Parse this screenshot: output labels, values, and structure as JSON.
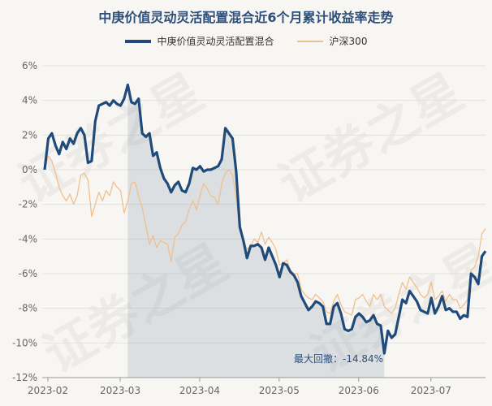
{
  "chart_data": {
    "type": "line",
    "title": "中庚价值灵动灵活配置混合近6个月累计收益率走势",
    "xlabel": "",
    "ylabel": "",
    "ylim": [
      -12,
      6
    ],
    "yticks": [
      "6%",
      "4%",
      "2%",
      "0%",
      "-2%",
      "-4%",
      "-6%",
      "-8%",
      "-10%",
      "-12%"
    ],
    "xticks": [
      "2023-02",
      "2023-03",
      "2023-04",
      "2023-05",
      "2023-06",
      "2023-07"
    ],
    "legend_position": "top-center",
    "grid": "horizontal",
    "series": [
      {
        "name": "中庚价值灵动灵活配置混合",
        "color": "#1f4a7a",
        "values": [
          0.0,
          1.8,
          2.1,
          1.4,
          0.9,
          1.6,
          1.2,
          1.8,
          1.5,
          2.1,
          2.4,
          2.0,
          0.4,
          0.5,
          2.8,
          3.7,
          3.8,
          3.9,
          3.7,
          4.0,
          3.8,
          3.7,
          4.1,
          4.9,
          3.9,
          3.8,
          4.1,
          2.1,
          1.9,
          2.1,
          0.8,
          1.0,
          0.1,
          -0.5,
          -0.8,
          -1.3,
          -0.9,
          -0.7,
          -1.2,
          -1.3,
          -0.8,
          0.1,
          0.0,
          0.2,
          -0.1,
          0.0,
          0.0,
          0.1,
          0.2,
          0.6,
          2.4,
          2.1,
          1.8,
          -0.1,
          -3.3,
          -4.1,
          -5.1,
          -4.4,
          -4.4,
          -4.3,
          -4.5,
          -5.2,
          -4.5,
          -5.0,
          -5.5,
          -6.2,
          -5.4,
          -5.5,
          -5.9,
          -6.1,
          -6.5,
          -7.3,
          -7.7,
          -8.1,
          -7.9,
          -7.6,
          -7.7,
          -7.9,
          -8.9,
          -8.9,
          -7.9,
          -7.7,
          -8.3,
          -9.2,
          -9.3,
          -9.2,
          -8.5,
          -8.3,
          -8.5,
          -8.8,
          -8.7,
          -8.4,
          -8.9,
          -9.0,
          -10.6,
          -9.3,
          -9.7,
          -9.5,
          -8.5,
          -7.5,
          -7.7,
          -7.0,
          -7.3,
          -7.6,
          -8.1,
          -8.2,
          -8.3,
          -7.4,
          -8.3,
          -7.9,
          -7.3,
          -8.1,
          -8.0,
          -8.2,
          -8.2,
          -8.6,
          -8.4,
          -8.5,
          -6.0,
          -6.2,
          -6.6,
          -5.0,
          -4.7
        ]
      },
      {
        "name": "沪深300",
        "color": "#efc08f",
        "values": [
          0.0,
          0.8,
          0.5,
          -0.2,
          -1.0,
          -1.5,
          -1.8,
          -1.4,
          -2.0,
          -1.5,
          -0.3,
          -0.2,
          -0.6,
          -2.7,
          -2.0,
          -1.3,
          -1.8,
          -1.2,
          -1.5,
          -0.7,
          -1.0,
          -1.2,
          -2.5,
          -1.8,
          -0.8,
          -0.7,
          -1.5,
          -2.2,
          -3.2,
          -4.3,
          -3.8,
          -4.5,
          -4.1,
          -4.2,
          -4.3,
          -5.3,
          -3.9,
          -3.7,
          -3.2,
          -3.0,
          -2.3,
          -1.8,
          -2.3,
          -1.5,
          -0.8,
          -1.1,
          -1.5,
          -1.6,
          -2.0,
          -0.8,
          -0.2,
          0.0,
          -0.3,
          -1.6,
          -3.5,
          -4.0,
          -4.6,
          -4.4,
          -4.0,
          -4.2,
          -3.6,
          -4.3,
          -3.9,
          -4.2,
          -4.6,
          -5.5,
          -5.4,
          -5.2,
          -5.8,
          -6.0,
          -6.0,
          -6.9,
          -7.2,
          -7.4,
          -7.5,
          -7.2,
          -7.4,
          -7.6,
          -8.2,
          -8.3,
          -7.6,
          -7.2,
          -7.8,
          -8.2,
          -8.3,
          -8.4,
          -7.5,
          -7.4,
          -7.2,
          -7.6,
          -7.9,
          -7.2,
          -7.5,
          -7.2,
          -7.9,
          -8.1,
          -8.3,
          -8.0,
          -7.2,
          -6.5,
          -6.9,
          -6.2,
          -6.5,
          -6.8,
          -7.2,
          -7.4,
          -7.2,
          -6.5,
          -7.5,
          -7.3,
          -7.0,
          -7.6,
          -7.2,
          -7.5,
          -7.5,
          -8.0,
          -7.8,
          -7.5,
          -5.8,
          -5.6,
          -5.0,
          -3.7,
          -3.4
        ]
      }
    ],
    "annotation": "最大回撤：-14.84%",
    "drawdown_peak_index": 23,
    "drawdown_trough_index": 94
  }
}
